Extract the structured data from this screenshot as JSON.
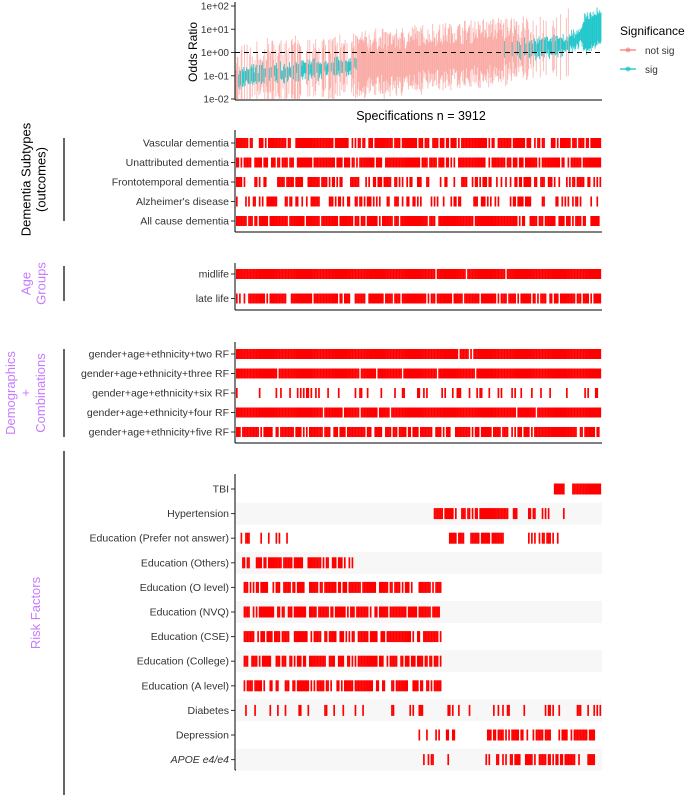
{
  "chart_data": [
    {
      "type": "line",
      "title": "",
      "xlabel": "",
      "ylabel": "Odds Ratio",
      "y_scale": "log10",
      "ylim": [
        0.01,
        100
      ],
      "y_ticks": [
        "1e-02",
        "1e-01",
        "1e+00",
        "1e+01",
        "1e+02"
      ],
      "reference_line": 1,
      "legend": {
        "title": "Significance",
        "position": "right",
        "entries": [
          {
            "label": "not sig",
            "color": "#F8766D"
          },
          {
            "label": "sig",
            "color": "#00BFC4"
          }
        ]
      },
      "n_specifications": 3912,
      "summary": "Specifications ordered by odds ratio; estimates rise from about 0.1 to about 20, with significant specifications concentrated at the low and high ends."
    },
    {
      "type": "heatmap",
      "title": "Specifications n = 3912",
      "mark_color": "#FF0000",
      "groups": [
        {
          "name_lines": [
            "Dementia Subtypes",
            "(outcomes)"
          ],
          "color": "#000000",
          "rows": [
            {
              "label": "Vascular dementia",
              "coverage": "dense"
            },
            {
              "label": "Unattributed dementia",
              "coverage": "dense"
            },
            {
              "label": "Frontotemporal dementia",
              "coverage": "medium"
            },
            {
              "label": "Alzheimer's disease",
              "coverage": "medium"
            },
            {
              "label": "All cause dementia",
              "coverage": "dense"
            }
          ]
        },
        {
          "name_lines": [
            "Age",
            "Groups"
          ],
          "color": "#C77CFF",
          "rows": [
            {
              "label": "midlife",
              "coverage": "full"
            },
            {
              "label": "late life",
              "coverage": "dense"
            }
          ]
        },
        {
          "name_lines": [
            "Demographics",
            "+",
            "Combinations"
          ],
          "color": "#C77CFF",
          "rows": [
            {
              "label": "gender+age+ethnicity+two RF",
              "coverage": "full"
            },
            {
              "label": "gender+age+ethnicity+three RF",
              "coverage": "full"
            },
            {
              "label": "gender+age+ethnicity+six RF",
              "coverage": "sparse"
            },
            {
              "label": "gender+age+ethnicity+four RF",
              "coverage": "full"
            },
            {
              "label": "gender+age+ethnicity+five RF",
              "coverage": "dense"
            }
          ]
        },
        {
          "name_lines": [
            "Risk Factors"
          ],
          "color": "#C77CFF",
          "rows": [
            {
              "label": "TBI",
              "coverage": "right-end"
            },
            {
              "label": "Hypertension",
              "coverage": "right-middle"
            },
            {
              "label": "Education (Prefer not answer)",
              "coverage": "mixed"
            },
            {
              "label": "Education (Others)",
              "coverage": "left"
            },
            {
              "label": "Education (O level)",
              "coverage": "left-middle"
            },
            {
              "label": "Education (NVQ)",
              "coverage": "left-middle"
            },
            {
              "label": "Education (CSE)",
              "coverage": "left-middle"
            },
            {
              "label": "Education (College)",
              "coverage": "left-middle"
            },
            {
              "label": "Education (A level)",
              "coverage": "left-middle"
            },
            {
              "label": "Diabetes",
              "coverage": "sparse"
            },
            {
              "label": "Depression",
              "coverage": "right"
            },
            {
              "label": "APOE e4/e4",
              "coverage": "right",
              "italic": true
            }
          ]
        }
      ]
    }
  ]
}
